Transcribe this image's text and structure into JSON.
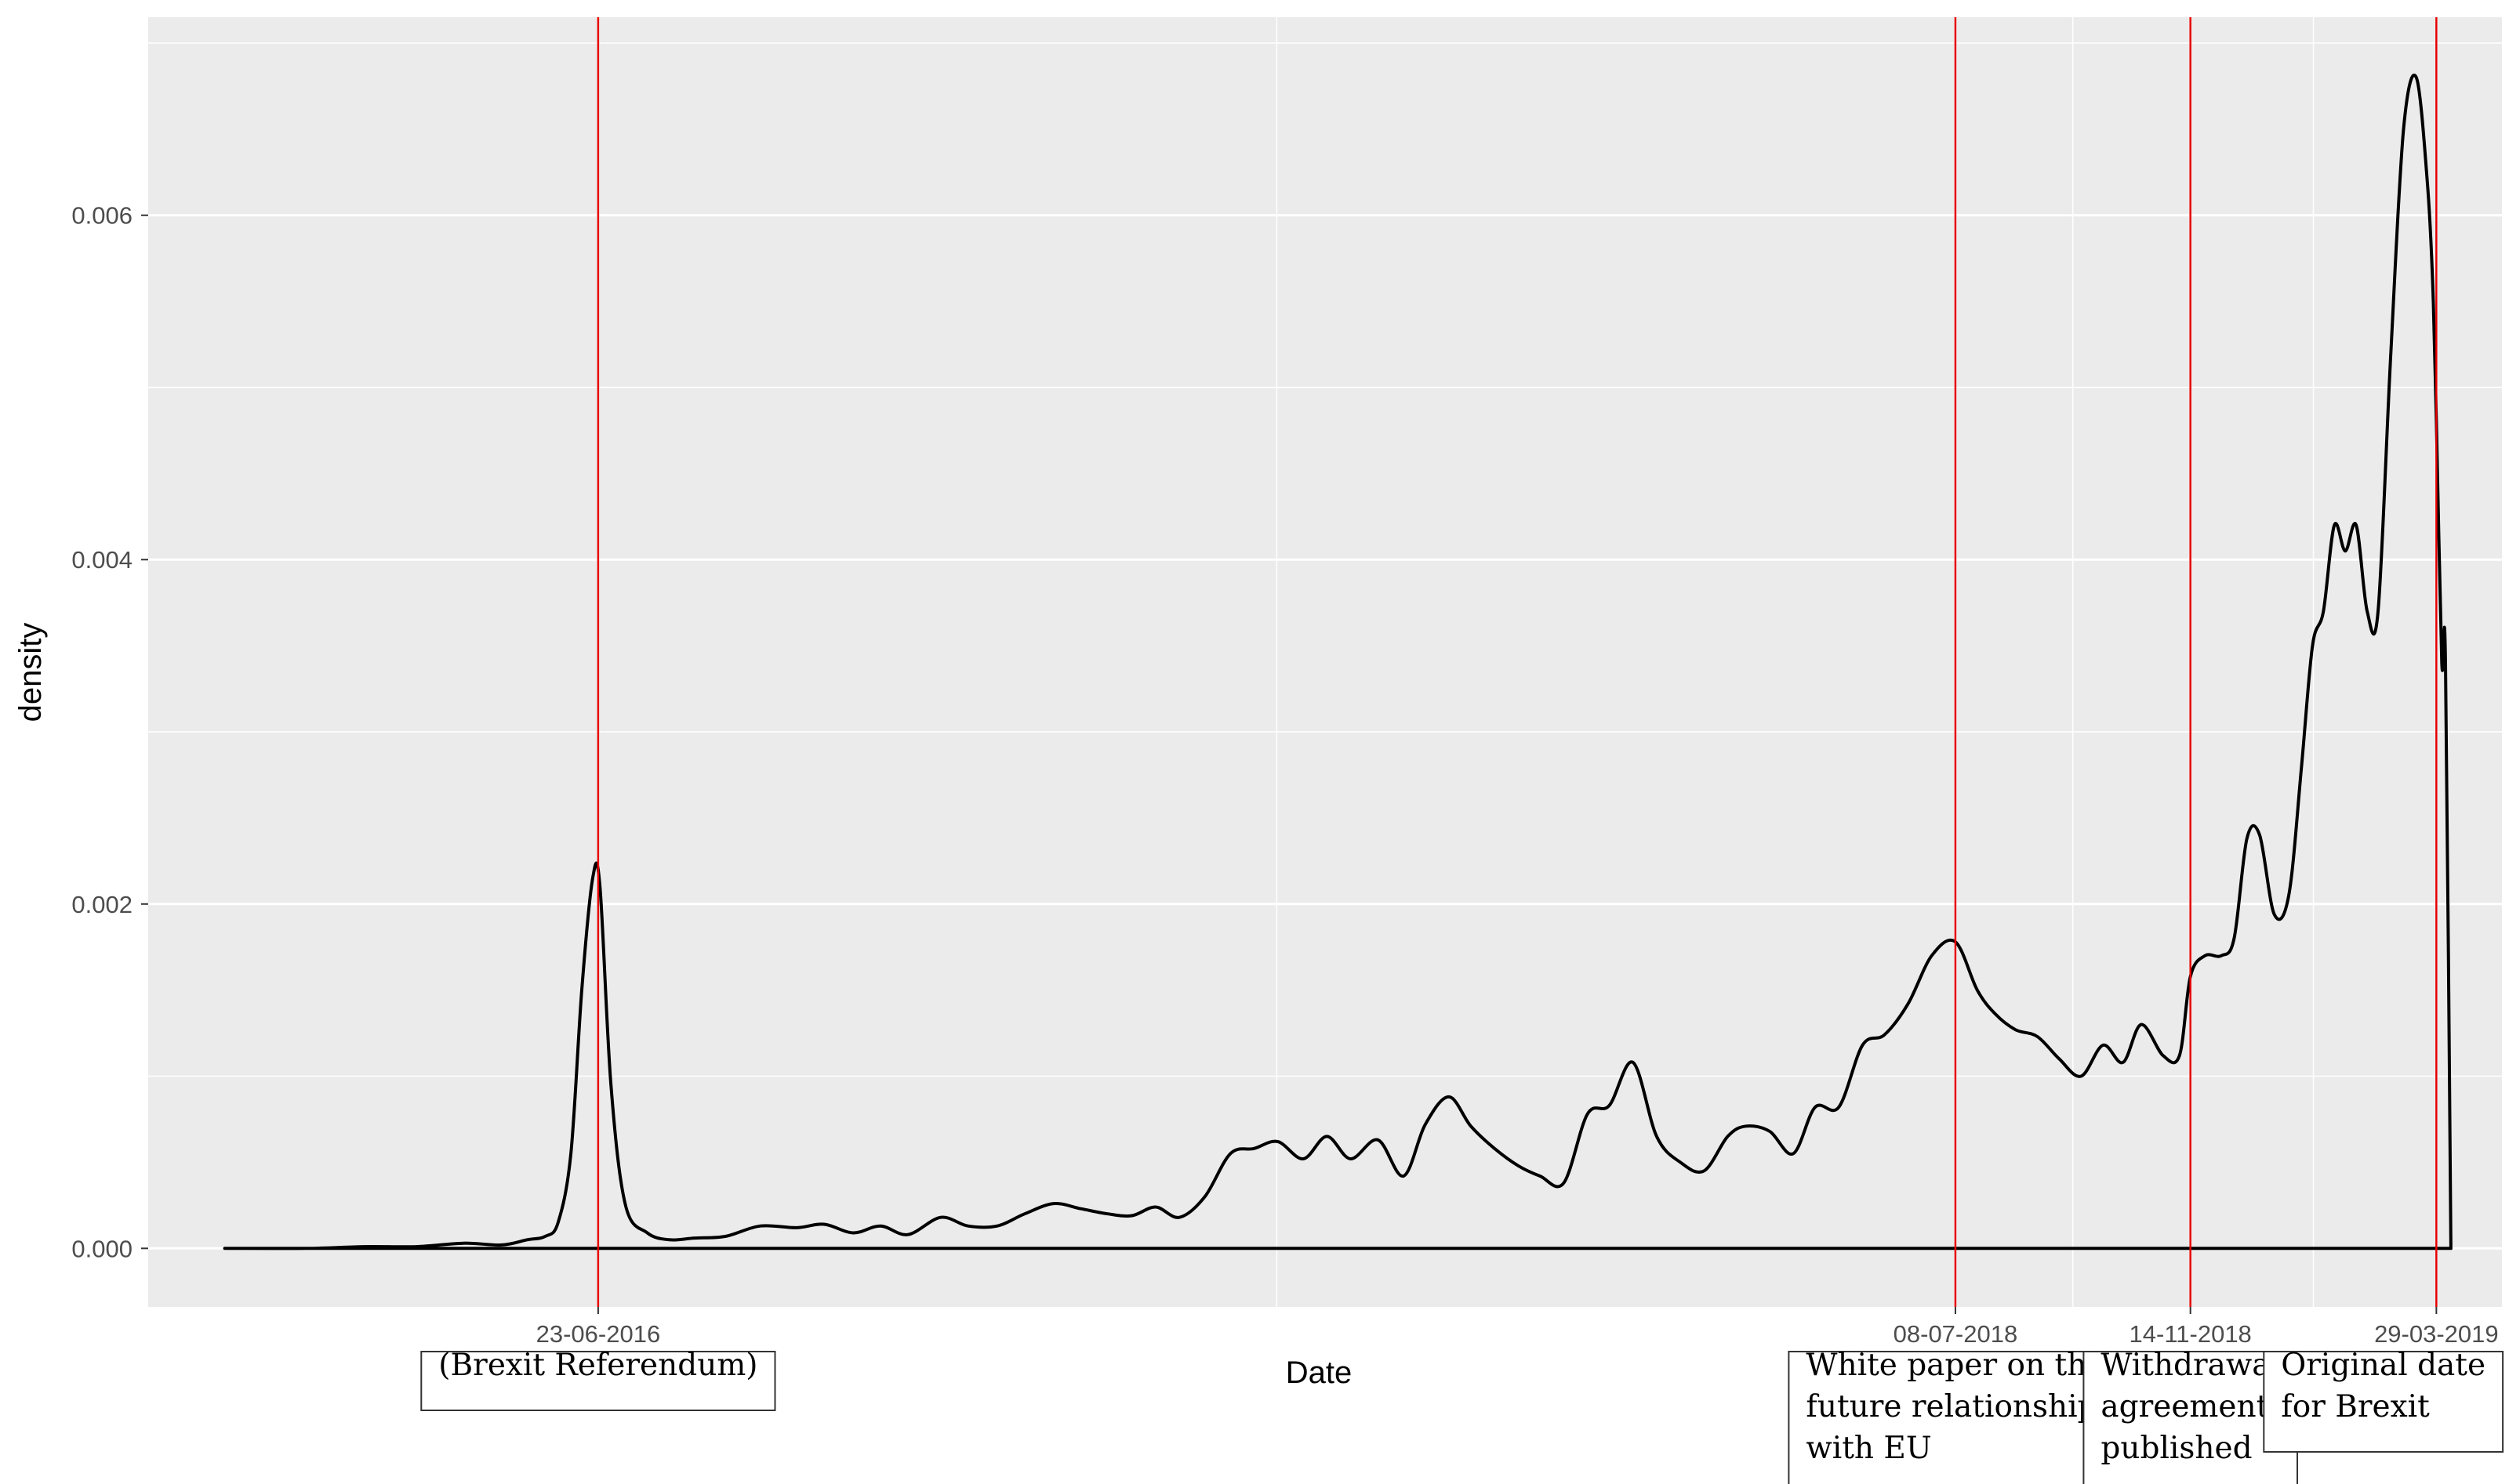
{
  "chart_data": {
    "type": "area",
    "xlabel": "Date",
    "ylabel": "density",
    "ylim": [
      -0.00034,
      0.00715
    ],
    "xlim": [
      "2015-10-20",
      "2019-05-04"
    ],
    "y_ticks": [
      0.0,
      0.002,
      0.004,
      0.006
    ],
    "y_tick_labels": [
      "0.000",
      "0.002",
      "0.004",
      "0.006"
    ],
    "grid": true,
    "colors": {
      "panel": "#ebebeb",
      "grid": "#ffffff",
      "line": "#000000",
      "event_line": "#e60000"
    },
    "events": [
      {
        "date": "2016-06-23",
        "tick_label": "23-06-2016",
        "note": [
          "(Brexit  Referendum)"
        ]
      },
      {
        "date": "2018-07-08",
        "tick_label": "08-07-2018",
        "note": [
          "White  paper  on  the",
          "future  relationship",
          "with  EU"
        ]
      },
      {
        "date": "2018-11-14",
        "tick_label": "14-11-2018",
        "note": [
          "Withdrawal",
          "agreement",
          "published"
        ]
      },
      {
        "date": "2019-03-29",
        "tick_label": "29-03-2019",
        "note": [
          "Original  date",
          "for  Brexit"
        ]
      }
    ],
    "series": [
      {
        "x": [
          "2015-12-01",
          "2016-01-15",
          "2016-02-15",
          "2016-03-15",
          "2016-04-10",
          "2016-05-01",
          "2016-05-15",
          "2016-05-25",
          "2016-06-01",
          "2016-06-08",
          "2016-06-14",
          "2016-06-20",
          "2016-06-24",
          "2016-06-30",
          "2016-07-08",
          "2016-07-20",
          "2016-08-01",
          "2016-08-15",
          "2016-09-01",
          "2016-09-20",
          "2016-10-10",
          "2016-10-25",
          "2016-11-10",
          "2016-11-25",
          "2016-12-10",
          "2016-12-28",
          "2017-01-12",
          "2017-01-28",
          "2017-02-12",
          "2017-02-28",
          "2017-03-15",
          "2017-03-30",
          "2017-04-12",
          "2017-04-25",
          "2017-05-08",
          "2017-05-22",
          "2017-06-05",
          "2017-06-18",
          "2017-07-01",
          "2017-07-15",
          "2017-07-28",
          "2017-08-10",
          "2017-08-25",
          "2017-09-08",
          "2017-09-20",
          "2017-10-03",
          "2017-10-15",
          "2017-10-28",
          "2017-11-10",
          "2017-11-22",
          "2017-12-05",
          "2017-12-18",
          "2017-12-30",
          "2018-01-12",
          "2018-01-25",
          "2018-02-07",
          "2018-02-20",
          "2018-03-05",
          "2018-03-15",
          "2018-03-28",
          "2018-04-10",
          "2018-04-22",
          "2018-05-05",
          "2018-05-18",
          "2018-05-30",
          "2018-06-12",
          "2018-06-25",
          "2018-07-08",
          "2018-07-20",
          "2018-07-30",
          "2018-08-10",
          "2018-08-22",
          "2018-09-03",
          "2018-09-15",
          "2018-09-27",
          "2018-10-08",
          "2018-10-18",
          "2018-10-30",
          "2018-11-08",
          "2018-11-14",
          "2018-11-22",
          "2018-12-01",
          "2018-12-08",
          "2018-12-15",
          "2018-12-22",
          "2018-12-30",
          "2019-01-07",
          "2019-01-14",
          "2019-01-20",
          "2019-01-26",
          "2019-02-01",
          "2019-02-07",
          "2019-02-13",
          "2019-02-19",
          "2019-02-25",
          "2019-03-04",
          "2019-03-11",
          "2019-03-18",
          "2019-03-24",
          "2019-03-27",
          "2019-03-29",
          "2019-04-01",
          "2019-04-03",
          "2019-04-06"
        ],
        "y": [
          0.0,
          0.0,
          1e-05,
          1e-05,
          3e-05,
          2e-05,
          5e-05,
          7e-05,
          0.00015,
          0.00055,
          0.0015,
          0.00215,
          0.0021,
          0.00095,
          0.00025,
          9e-05,
          5e-05,
          6e-05,
          7e-05,
          0.00013,
          0.00012,
          0.00014,
          9e-05,
          0.00013,
          8e-05,
          0.00018,
          0.00013,
          0.00013,
          0.0002,
          0.00026,
          0.00023,
          0.0002,
          0.00019,
          0.00024,
          0.00018,
          0.0003,
          0.00055,
          0.00058,
          0.00062,
          0.00052,
          0.00065,
          0.00052,
          0.00063,
          0.00042,
          0.00072,
          0.00088,
          0.00071,
          0.00058,
          0.00048,
          0.00042,
          0.00038,
          0.00078,
          0.00083,
          0.00108,
          0.00065,
          0.0005,
          0.00045,
          0.00065,
          0.00071,
          0.00068,
          0.00055,
          0.00082,
          0.00082,
          0.00118,
          0.00124,
          0.00142,
          0.0017,
          0.00178,
          0.0015,
          0.00136,
          0.00127,
          0.00123,
          0.0011,
          0.001,
          0.00118,
          0.00108,
          0.0013,
          0.00112,
          0.00112,
          0.00158,
          0.0017,
          0.0017,
          0.0018,
          0.00238,
          0.0024,
          0.00194,
          0.00205,
          0.0028,
          0.0035,
          0.0037,
          0.0042,
          0.00405,
          0.0042,
          0.0037,
          0.0037,
          0.0052,
          0.0065,
          0.0068,
          0.0062,
          0.0056,
          0.0048,
          0.0034,
          0.0034,
          0.0
        ]
      }
    ]
  }
}
